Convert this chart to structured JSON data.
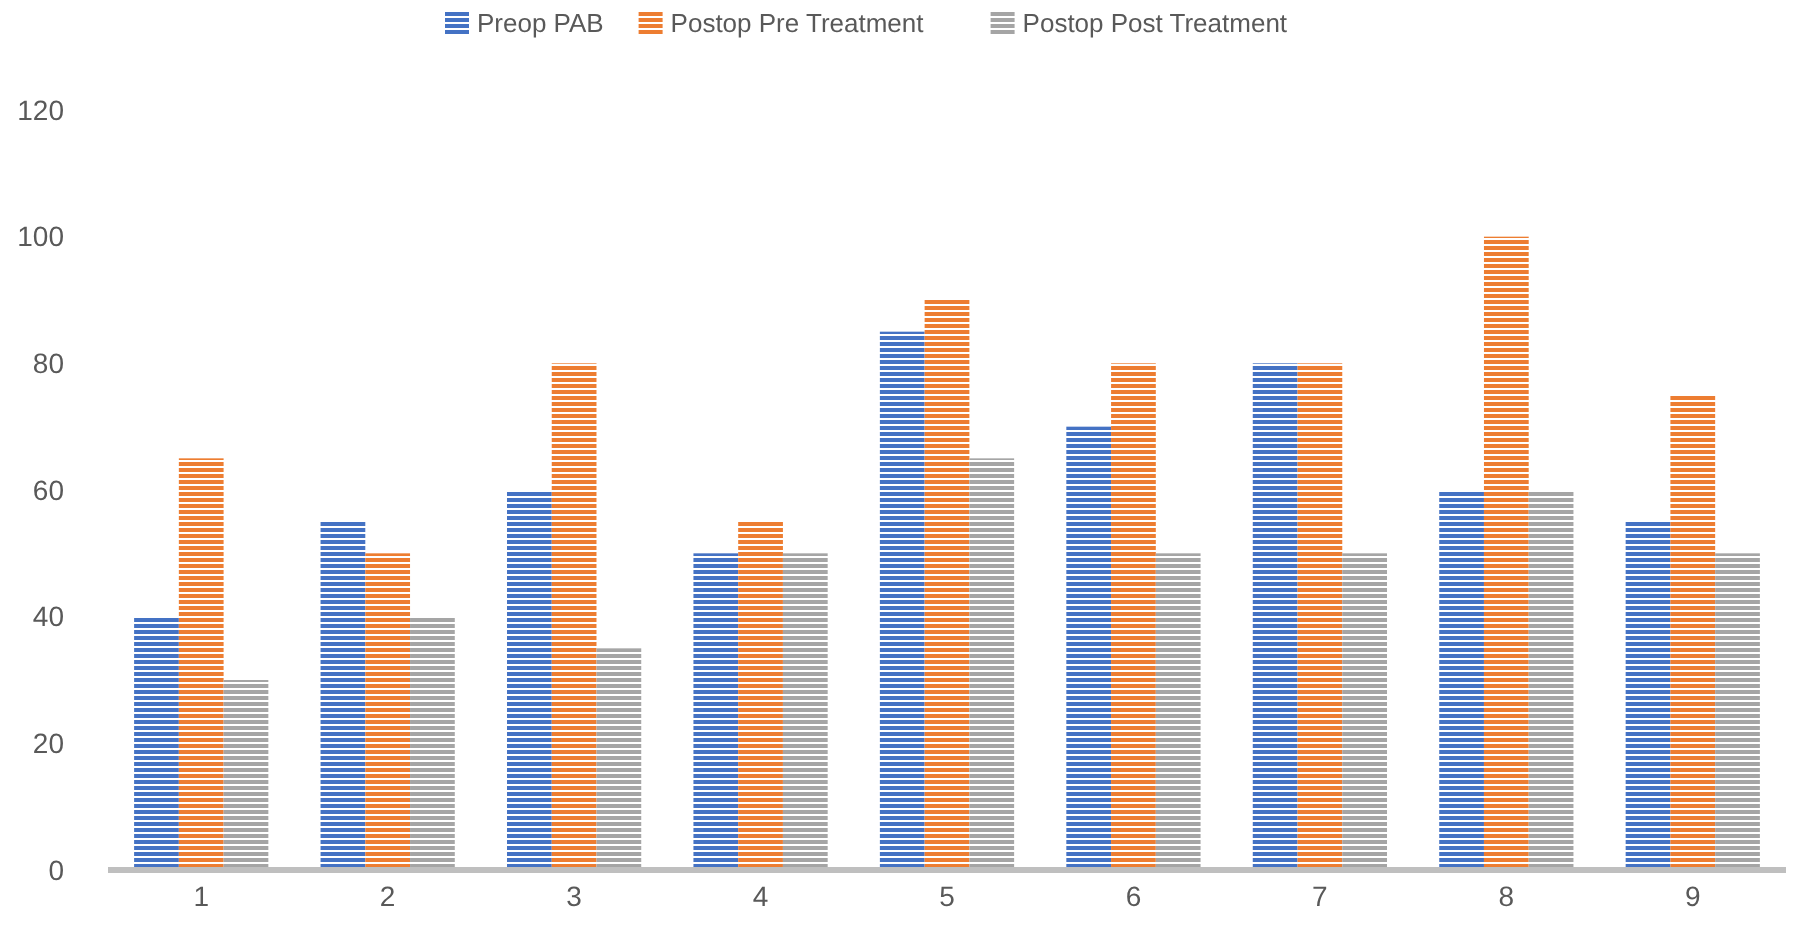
{
  "chart_data": {
    "type": "bar",
    "categories": [
      "1",
      "2",
      "3",
      "4",
      "5",
      "6",
      "7",
      "8",
      "9"
    ],
    "series": [
      {
        "name": "Preop PAB",
        "color": "#4472c4",
        "values": [
          40,
          55,
          60,
          50,
          85,
          70,
          80,
          60,
          55
        ]
      },
      {
        "name": "Postop Pre Treatment",
        "color": "#ed7d31",
        "values": [
          65,
          50,
          80,
          55,
          90,
          80,
          80,
          100,
          75
        ]
      },
      {
        "name": "Postop Post Treatment",
        "color": "#a5a5a5",
        "values": [
          30,
          40,
          35,
          50,
          65,
          50,
          50,
          60,
          50
        ]
      }
    ],
    "ylim": [
      0,
      120
    ],
    "yticks": [
      0,
      20,
      40,
      60,
      80,
      100,
      120
    ],
    "grid": false,
    "legend": "top"
  }
}
